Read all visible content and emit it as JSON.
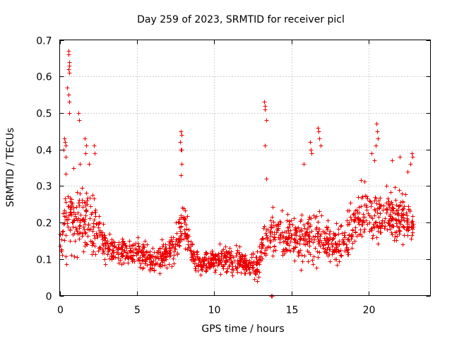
{
  "chart_data": {
    "type": "scatter",
    "title": "Day 259 of 2023, SRMTID for receiver picl",
    "xlabel": "GPS time / hours",
    "ylabel": "SRMTID / TECUs",
    "xlim": [
      0,
      24
    ],
    "ylim": [
      0,
      0.7
    ],
    "xticks": [
      0,
      5,
      10,
      15,
      20
    ],
    "xtick_labels": [
      "0",
      "5",
      "10",
      "15",
      "20"
    ],
    "yticks": [
      0,
      0.1,
      0.2,
      0.3,
      0.4,
      0.5,
      0.6,
      0.7
    ],
    "ytick_labels": [
      "0",
      "0.1",
      "0.2",
      "0.3",
      "0.4",
      "0.5",
      "0.6",
      "0.7"
    ],
    "grid": true,
    "marker": "+",
    "color": "#ee0000",
    "envelope": {
      "x": [
        0,
        0.3,
        0.6,
        1.0,
        1.5,
        2.0,
        2.5,
        3.0,
        4.0,
        5.0,
        6.0,
        7.0,
        7.5,
        8.0,
        8.5,
        9.0,
        10.0,
        11.0,
        12.0,
        12.8,
        13.3,
        13.8,
        14.5,
        15.5,
        16.5,
        17.5,
        18.5,
        19.5,
        20.5,
        21.5,
        22.0,
        22.9
      ],
      "mean": [
        0.12,
        0.2,
        0.22,
        0.2,
        0.22,
        0.2,
        0.17,
        0.13,
        0.12,
        0.12,
        0.1,
        0.11,
        0.14,
        0.2,
        0.12,
        0.09,
        0.1,
        0.1,
        0.09,
        0.08,
        0.15,
        0.18,
        0.16,
        0.15,
        0.17,
        0.14,
        0.15,
        0.22,
        0.22,
        0.21,
        0.22,
        0.2
      ],
      "spread": [
        0.05,
        0.08,
        0.08,
        0.07,
        0.07,
        0.07,
        0.05,
        0.04,
        0.03,
        0.03,
        0.03,
        0.03,
        0.04,
        0.05,
        0.03,
        0.025,
        0.03,
        0.03,
        0.03,
        0.03,
        0.05,
        0.05,
        0.05,
        0.05,
        0.06,
        0.05,
        0.05,
        0.06,
        0.06,
        0.06,
        0.06,
        0.05
      ]
    },
    "spikes": [
      {
        "x": 0.55,
        "y": 0.67
      },
      {
        "x": 0.58,
        "y": 0.66
      },
      {
        "x": 0.6,
        "y": 0.64
      },
      {
        "x": 0.62,
        "y": 0.63
      },
      {
        "x": 0.55,
        "y": 0.62
      },
      {
        "x": 0.6,
        "y": 0.61
      },
      {
        "x": 0.5,
        "y": 0.57
      },
      {
        "x": 0.55,
        "y": 0.55
      },
      {
        "x": 0.6,
        "y": 0.53
      },
      {
        "x": 0.62,
        "y": 0.5
      },
      {
        "x": 1.2,
        "y": 0.5
      },
      {
        "x": 1.25,
        "y": 0.48
      },
      {
        "x": 0.3,
        "y": 0.43
      },
      {
        "x": 0.35,
        "y": 0.42
      },
      {
        "x": 0.4,
        "y": 0.41
      },
      {
        "x": 0.25,
        "y": 0.4
      },
      {
        "x": 0.38,
        "y": 0.38
      },
      {
        "x": 1.6,
        "y": 0.43
      },
      {
        "x": 1.7,
        "y": 0.41
      },
      {
        "x": 1.65,
        "y": 0.39
      },
      {
        "x": 2.2,
        "y": 0.41
      },
      {
        "x": 2.25,
        "y": 0.39
      },
      {
        "x": 1.9,
        "y": 0.36
      },
      {
        "x": 0.9,
        "y": 0.35
      },
      {
        "x": 1.3,
        "y": 0.36
      },
      {
        "x": 7.85,
        "y": 0.45
      },
      {
        "x": 7.9,
        "y": 0.44
      },
      {
        "x": 7.8,
        "y": 0.42
      },
      {
        "x": 7.82,
        "y": 0.4
      },
      {
        "x": 7.88,
        "y": 0.4
      },
      {
        "x": 7.9,
        "y": 0.36
      },
      {
        "x": 7.85,
        "y": 0.33
      },
      {
        "x": 13.25,
        "y": 0.53
      },
      {
        "x": 13.3,
        "y": 0.52
      },
      {
        "x": 13.28,
        "y": 0.51
      },
      {
        "x": 13.35,
        "y": 0.48
      },
      {
        "x": 13.3,
        "y": 0.41
      },
      {
        "x": 13.35,
        "y": 0.32
      },
      {
        "x": 16.7,
        "y": 0.46
      },
      {
        "x": 16.75,
        "y": 0.45
      },
      {
        "x": 16.8,
        "y": 0.43
      },
      {
        "x": 16.9,
        "y": 0.41
      },
      {
        "x": 16.2,
        "y": 0.42
      },
      {
        "x": 16.25,
        "y": 0.4
      },
      {
        "x": 16.3,
        "y": 0.39
      },
      {
        "x": 15.8,
        "y": 0.36
      },
      {
        "x": 20.5,
        "y": 0.47
      },
      {
        "x": 20.55,
        "y": 0.45
      },
      {
        "x": 20.6,
        "y": 0.43
      },
      {
        "x": 20.45,
        "y": 0.41
      },
      {
        "x": 20.2,
        "y": 0.39
      },
      {
        "x": 20.35,
        "y": 0.37
      },
      {
        "x": 21.5,
        "y": 0.37
      },
      {
        "x": 22.0,
        "y": 0.38
      },
      {
        "x": 22.8,
        "y": 0.39
      },
      {
        "x": 22.85,
        "y": 0.38
      },
      {
        "x": 22.7,
        "y": 0.36
      },
      {
        "x": 22.5,
        "y": 0.34
      }
    ],
    "lows": [
      {
        "x": 13.7,
        "y": 0.0
      },
      {
        "x": 13.72,
        "y": 0.0
      }
    ]
  }
}
